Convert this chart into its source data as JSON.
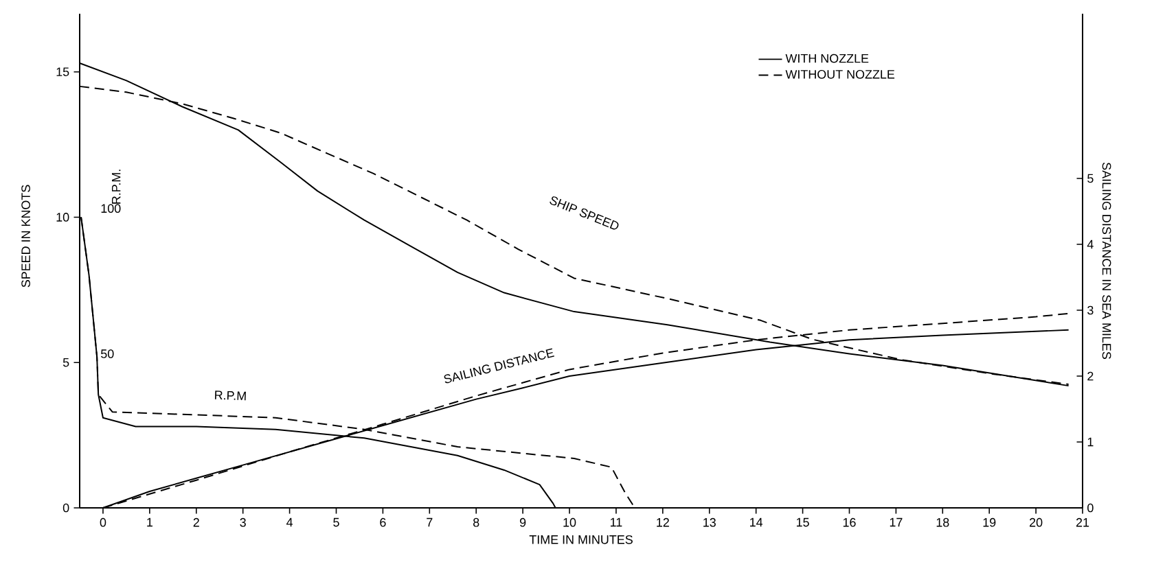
{
  "chart_data": {
    "type": "line",
    "xlabel": "TIME IN MINUTES",
    "ylabel": "SPEED IN KNOTS",
    "y2label": "SAILING DISTANCE IN SEA MILES",
    "y3label": "R.P.M.",
    "xlim": [
      -0.5,
      21
    ],
    "xticks": [
      0,
      1,
      2,
      3,
      4,
      5,
      6,
      7,
      8,
      9,
      10,
      11,
      12,
      13,
      14,
      15,
      16,
      17,
      18,
      19,
      20,
      21
    ],
    "ylim": [
      0,
      17
    ],
    "yticks": [
      0,
      5,
      10,
      15
    ],
    "y2lim": [
      0,
      7.5
    ],
    "y2ticks": [
      0,
      1,
      2,
      3,
      4,
      5
    ],
    "y3lim": [
      0,
      170
    ],
    "y3ticks": [
      50,
      100
    ],
    "legend": "top right",
    "grid": false,
    "marker": "none",
    "series": [
      {
        "name": "WITH NOZZLE",
        "color": "#000000",
        "line_style": "solid",
        "x": [
          -0.5,
          0.5,
          1.7,
          2.9,
          3.8,
          4.6,
          5.6,
          6.6,
          7.6,
          8.6,
          10.1,
          12.1,
          14.3,
          16.0,
          18.0,
          20.7
        ],
        "values": [
          15.3,
          14.7,
          13.8,
          13.0,
          11.9,
          10.9,
          9.9,
          9.0,
          8.1,
          7.4,
          6.75,
          6.3,
          5.7,
          5.3,
          4.9,
          4.2
        ]
      },
      {
        "name": "WITHOUT NOZZLE",
        "color": "#000000",
        "line_style": "dashed",
        "x": [
          -0.5,
          0.5,
          1.7,
          2.8,
          3.8,
          4.8,
          5.8,
          6.8,
          7.8,
          8.9,
          10.1,
          12.1,
          14.1,
          15.2,
          17.1,
          19.1,
          20.7
        ],
        "values": [
          14.5,
          14.3,
          13.9,
          13.4,
          12.9,
          12.2,
          11.5,
          10.7,
          9.9,
          8.9,
          7.9,
          7.2,
          6.45,
          5.8,
          5.1,
          4.6,
          4.25
        ]
      },
      {
        "color": "#000000",
        "line_style": "solid",
        "axis": "y3",
        "x": [
          -0.47,
          -0.3,
          -0.13,
          -0.1,
          0.0,
          0.7,
          2.0,
          3.7,
          5.6,
          7.6,
          8.6,
          9.36,
          9.65,
          9.7
        ],
        "values": [
          100,
          80,
          52,
          39,
          31,
          28,
          28,
          27,
          24,
          18,
          13,
          8,
          1.5,
          0
        ]
      },
      {
        "color": "#000000",
        "line_style": "dashed",
        "axis": "y3",
        "x": [
          -0.47,
          -0.3,
          -0.13,
          -0.1,
          0.2,
          2.0,
          3.7,
          5.6,
          7.6,
          10.1,
          10.9,
          11.2,
          11.4
        ],
        "values": [
          100,
          80,
          52,
          39,
          33,
          32,
          31,
          27,
          21,
          17,
          14,
          5,
          0
        ]
      },
      {
        "color": "#000000",
        "line_style": "solid",
        "axis": "y2",
        "x": [
          0,
          1,
          2,
          3,
          4,
          5,
          6,
          7,
          8,
          9,
          10,
          12,
          14,
          16,
          18,
          20.7
        ],
        "values": [
          0,
          0.25,
          0.45,
          0.65,
          0.85,
          1.05,
          1.25,
          1.45,
          1.65,
          1.82,
          2.0,
          2.2,
          2.4,
          2.55,
          2.62,
          2.7
        ]
      },
      {
        "color": "#000000",
        "line_style": "dashed",
        "axis": "y2",
        "x": [
          0,
          2,
          4,
          6,
          8,
          10,
          12,
          14,
          16,
          18,
          20,
          20.7
        ],
        "values": [
          0,
          0.42,
          0.85,
          1.27,
          1.7,
          2.1,
          2.35,
          2.55,
          2.7,
          2.8,
          2.9,
          2.95
        ]
      }
    ],
    "annotations": [
      "SHIP SPEED",
      "R.P.M",
      "SAILING DISTANCE"
    ]
  }
}
